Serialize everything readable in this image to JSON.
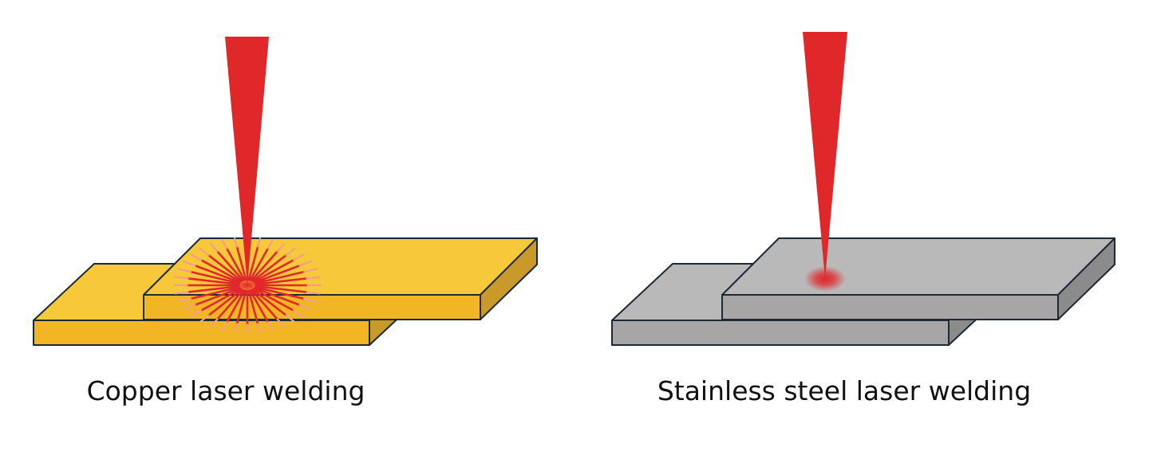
{
  "panels": [
    {
      "label": "Copper laser welding"
    },
    {
      "label": "Stainless steel laser welding"
    }
  ]
}
